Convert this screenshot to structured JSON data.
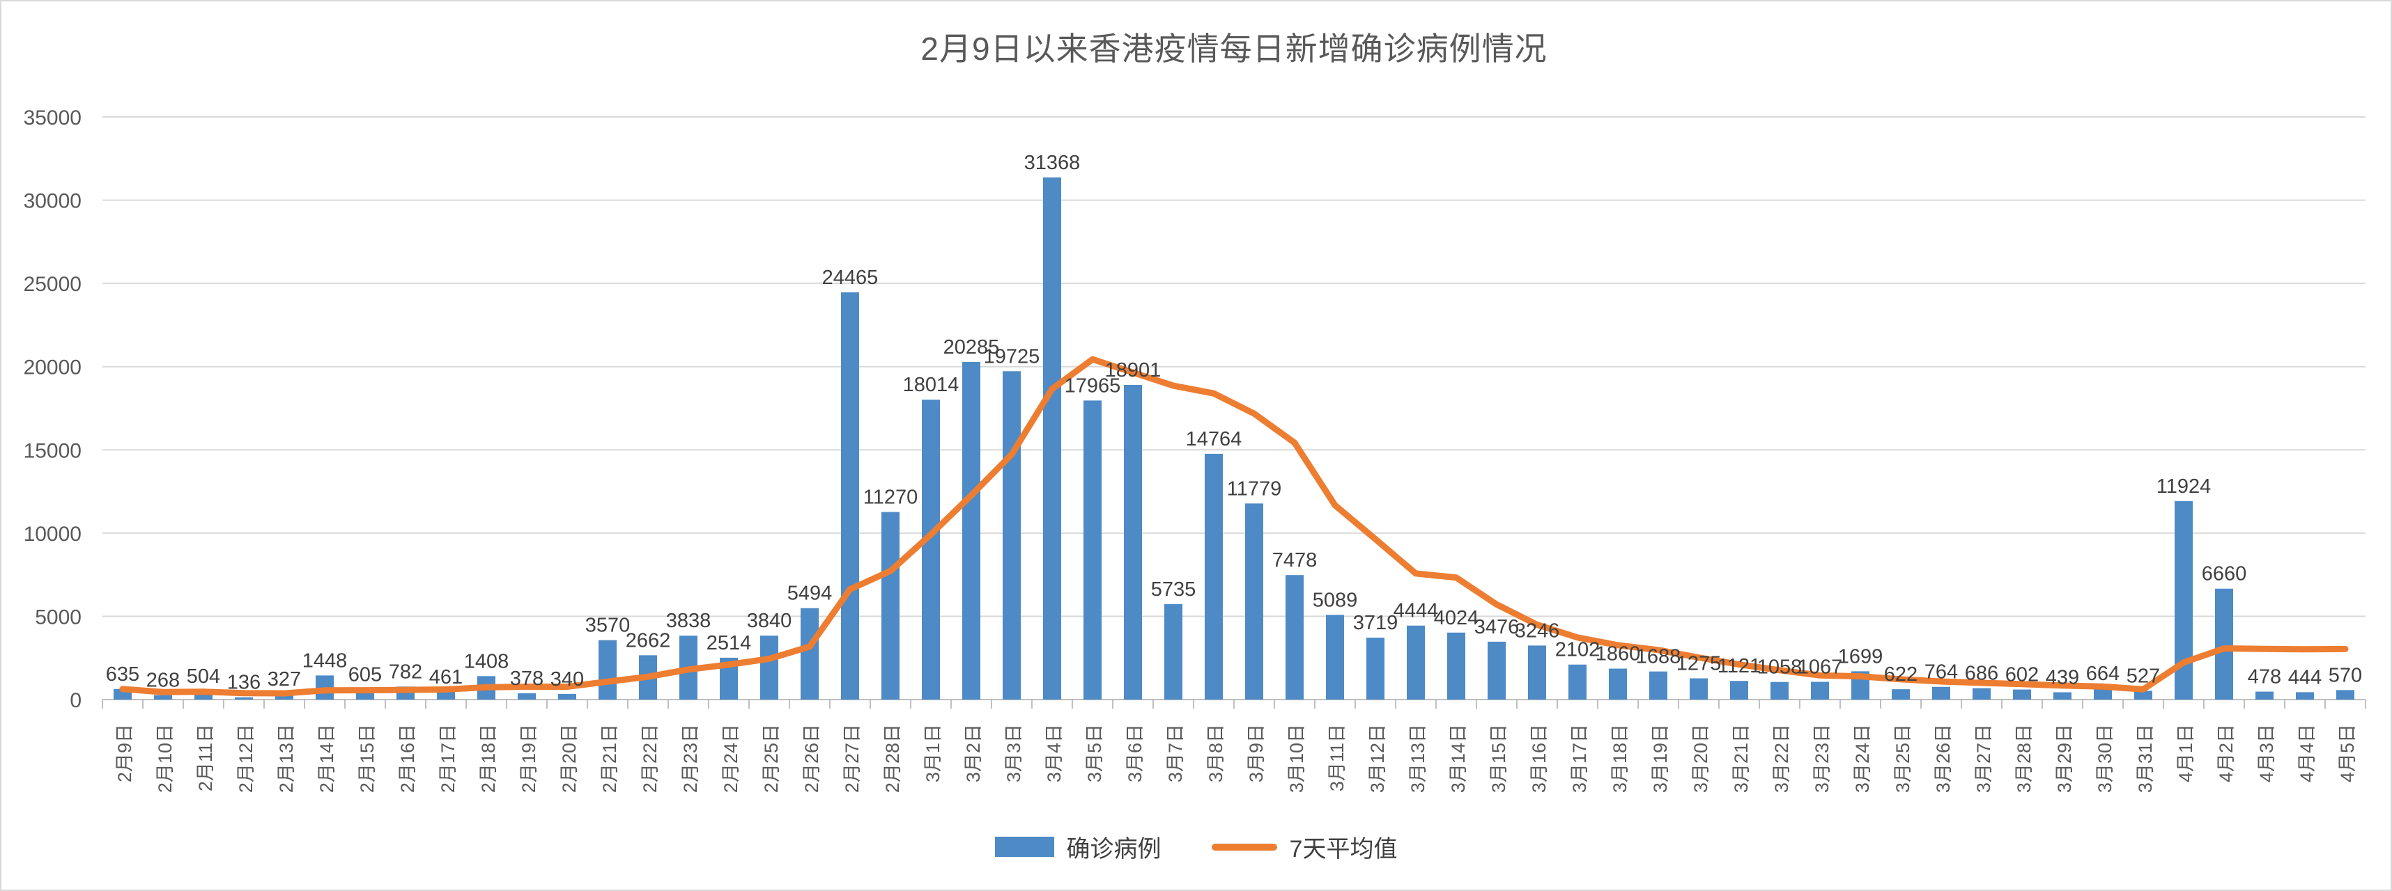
{
  "chart_data": {
    "type": "bar",
    "title": "2月9日以来香港疫情每日新增确诊病例情况",
    "categories": [
      "2月9日",
      "2月10日",
      "2月11日",
      "2月12日",
      "2月13日",
      "2月14日",
      "2月15日",
      "2月16日",
      "2月17日",
      "2月18日",
      "2月19日",
      "2月20日",
      "2月21日",
      "2月22日",
      "2月23日",
      "2月24日",
      "2月25日",
      "2月26日",
      "2月27日",
      "2月28日",
      "3月1日",
      "3月2日",
      "3月3日",
      "3月4日",
      "3月5日",
      "3月6日",
      "3月7日",
      "3月8日",
      "3月9日",
      "3月10日",
      "3月11日",
      "3月12日",
      "3月13日",
      "3月14日",
      "3月15日",
      "3月16日",
      "3月17日",
      "3月18日",
      "3月19日",
      "3月20日",
      "3月21日",
      "3月22日",
      "3月23日",
      "3月24日",
      "3月25日",
      "3月26日",
      "3月27日",
      "3月28日",
      "3月29日",
      "3月30日",
      "3月31日",
      "4月1日",
      "4月2日",
      "4月3日",
      "4月4日",
      "4月5日"
    ],
    "series": [
      {
        "name": "确诊病例",
        "type": "bar",
        "color": "#4d8ac6",
        "values": [
          635,
          268,
          504,
          136,
          327,
          1448,
          605,
          782,
          461,
          1408,
          378,
          340,
          3570,
          2662,
          3838,
          2514,
          3840,
          5494,
          24465,
          11270,
          18014,
          20285,
          19725,
          31368,
          17965,
          18901,
          5735,
          14764,
          11779,
          7478,
          5089,
          3719,
          4444,
          4024,
          3476,
          3246,
          2102,
          1860,
          1688,
          1275,
          1121,
          1058,
          1067,
          1699,
          622,
          764,
          686,
          602,
          439,
          664,
          527,
          11924,
          6660,
          478,
          444,
          570
        ]
      },
      {
        "name": "7天平均值",
        "type": "line",
        "color": "#ed7d31",
        "derivation": "trailing 7-day mean of 确诊病例"
      }
    ],
    "ylim": [
      0,
      35000
    ],
    "y_ticks": [
      0,
      5000,
      10000,
      15000,
      20000,
      25000,
      30000,
      35000
    ],
    "grid": "horizontal",
    "legend_position": "bottom",
    "data_labels": true
  }
}
